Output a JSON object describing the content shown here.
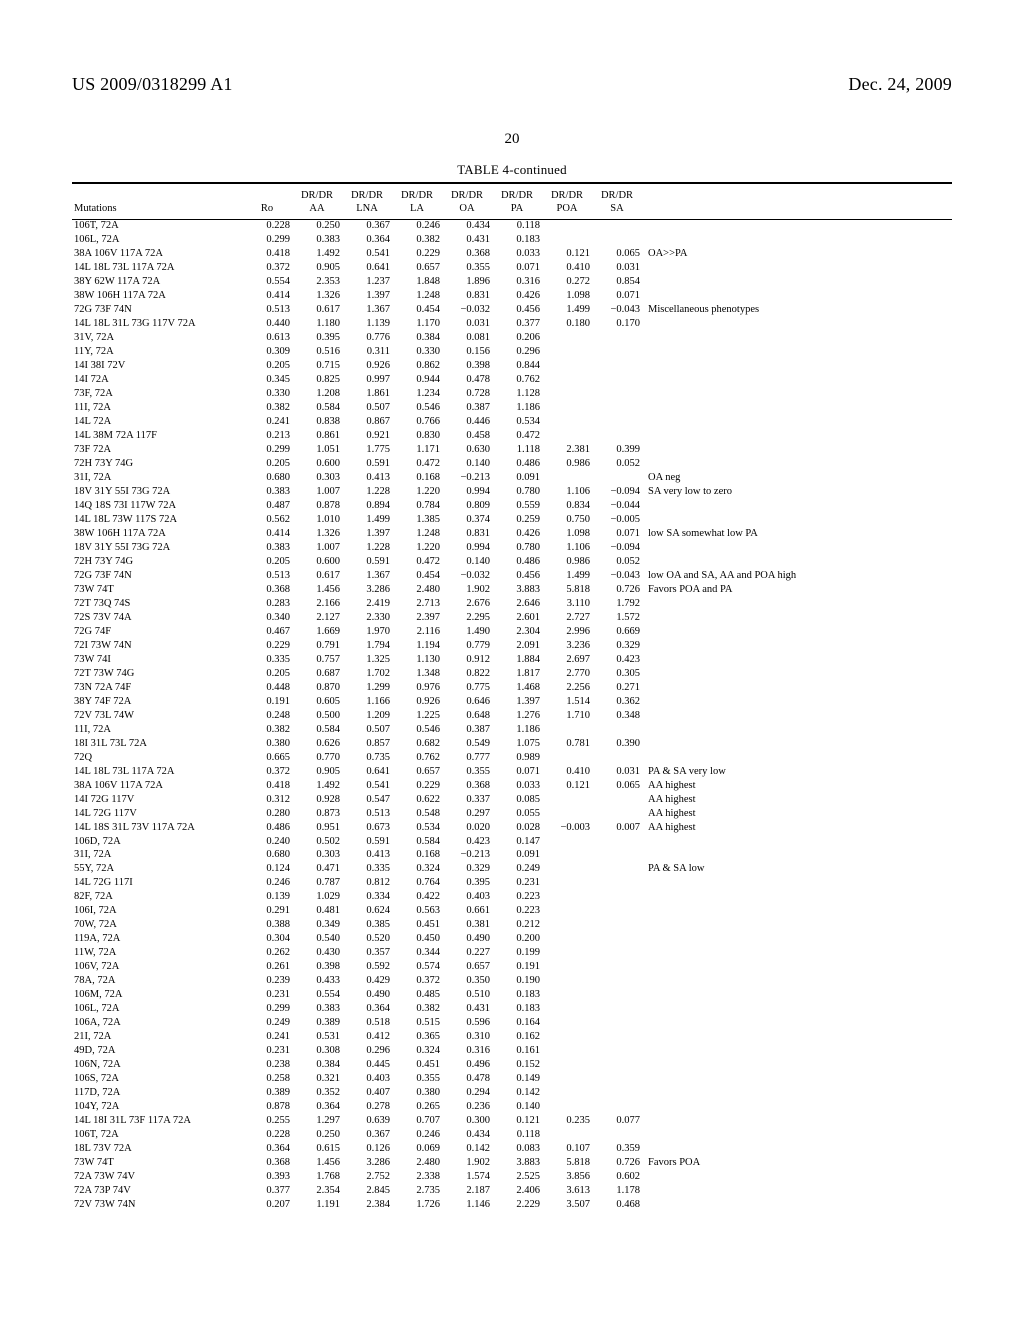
{
  "header": {
    "doc_number": "US 2009/0318299 A1",
    "date": "Dec. 24, 2009",
    "page_number": "20"
  },
  "table": {
    "caption": "TABLE 4-continued",
    "columns": [
      "Mutations",
      "Ro",
      "DR/DR AA",
      "DR/DR LNA",
      "DR/DR LA",
      "DR/DR OA",
      "DR/DR PA",
      "DR/DR POA",
      "DR/DR SA",
      ""
    ],
    "rows": [
      {
        "m": "106T, 72A",
        "v": [
          "0.228",
          "0.250",
          "0.367",
          "0.246",
          "0.434",
          "0.118",
          "",
          "",
          ""
        ]
      },
      {
        "m": "106L, 72A",
        "v": [
          "0.299",
          "0.383",
          "0.364",
          "0.382",
          "0.431",
          "0.183",
          "",
          "",
          ""
        ]
      },
      {
        "m": "38A 106V 117A 72A",
        "v": [
          "0.418",
          "1.492",
          "0.541",
          "0.229",
          "0.368",
          "0.033",
          "0.121",
          "0.065",
          "OA>>PA"
        ]
      },
      {
        "m": "14L 18L 73L 117A 72A",
        "v": [
          "0.372",
          "0.905",
          "0.641",
          "0.657",
          "0.355",
          "0.071",
          "0.410",
          "0.031",
          ""
        ]
      },
      {
        "m": "38Y 62W 117A 72A",
        "v": [
          "0.554",
          "2.353",
          "1.237",
          "1.848",
          "1.896",
          "0.316",
          "0.272",
          "0.854",
          ""
        ]
      },
      {
        "m": "38W 106H 117A 72A",
        "v": [
          "0.414",
          "1.326",
          "1.397",
          "1.248",
          "0.831",
          "0.426",
          "1.098",
          "0.071",
          ""
        ]
      },
      {
        "m": "72G 73F 74N",
        "v": [
          "0.513",
          "0.617",
          "1.367",
          "0.454",
          "−0.032",
          "0.456",
          "1.499",
          "−0.043",
          "Miscellaneous phenotypes"
        ]
      },
      {
        "m": "14L 18L 31L 73G 117V 72A",
        "v": [
          "0.440",
          "1.180",
          "1.139",
          "1.170",
          "0.031",
          "0.377",
          "0.180",
          "0.170",
          ""
        ]
      },
      {
        "m": "31V, 72A",
        "v": [
          "0.613",
          "0.395",
          "0.776",
          "0.384",
          "0.081",
          "0.206",
          "",
          "",
          ""
        ]
      },
      {
        "m": "11Y, 72A",
        "v": [
          "0.309",
          "0.516",
          "0.311",
          "0.330",
          "0.156",
          "0.296",
          "",
          "",
          ""
        ]
      },
      {
        "m": "14I 38I 72V",
        "v": [
          "0.205",
          "0.715",
          "0.926",
          "0.862",
          "0.398",
          "0.844",
          "",
          "",
          ""
        ]
      },
      {
        "m": "14I 72A",
        "v": [
          "0.345",
          "0.825",
          "0.997",
          "0.944",
          "0.478",
          "0.762",
          "",
          "",
          ""
        ]
      },
      {
        "m": "73F, 72A",
        "v": [
          "0.330",
          "1.208",
          "1.861",
          "1.234",
          "0.728",
          "1.128",
          "",
          "",
          ""
        ]
      },
      {
        "m": "11I, 72A",
        "v": [
          "0.382",
          "0.584",
          "0.507",
          "0.546",
          "0.387",
          "1.186",
          "",
          "",
          ""
        ]
      },
      {
        "m": "14L 72A",
        "v": [
          "0.241",
          "0.838",
          "0.867",
          "0.766",
          "0.446",
          "0.534",
          "",
          "",
          ""
        ]
      },
      {
        "m": "14L 38M 72A 117F",
        "v": [
          "0.213",
          "0.861",
          "0.921",
          "0.830",
          "0.458",
          "0.472",
          "",
          "",
          ""
        ]
      },
      {
        "m": "73F 72A",
        "v": [
          "0.299",
          "1.051",
          "1.775",
          "1.171",
          "0.630",
          "1.118",
          "2.381",
          "0.399",
          ""
        ]
      },
      {
        "m": "72H 73Y 74G",
        "v": [
          "0.205",
          "0.600",
          "0.591",
          "0.472",
          "0.140",
          "0.486",
          "0.986",
          "0.052",
          ""
        ]
      },
      {
        "m": "31I, 72A",
        "v": [
          "0.680",
          "0.303",
          "0.413",
          "0.168",
          "−0.213",
          "0.091",
          "",
          "",
          "OA neg"
        ]
      },
      {
        "m": "18V 31Y 55I 73G 72A",
        "v": [
          "0.383",
          "1.007",
          "1.228",
          "1.220",
          "0.994",
          "0.780",
          "1.106",
          "−0.094",
          "SA very low to zero"
        ]
      },
      {
        "m": "14Q 18S 73I 117W 72A",
        "v": [
          "0.487",
          "0.878",
          "0.894",
          "0.784",
          "0.809",
          "0.559",
          "0.834",
          "−0.044",
          ""
        ]
      },
      {
        "m": "14L 18L 73W 117S 72A",
        "v": [
          "0.562",
          "1.010",
          "1.499",
          "1.385",
          "0.374",
          "0.259",
          "0.750",
          "−0.005",
          ""
        ]
      },
      {
        "m": "38W 106H 117A 72A",
        "v": [
          "0.414",
          "1.326",
          "1.397",
          "1.248",
          "0.831",
          "0.426",
          "1.098",
          "0.071",
          "low SA somewhat low PA"
        ]
      },
      {
        "m": "18V 31Y 55I 73G 72A",
        "v": [
          "0.383",
          "1.007",
          "1.228",
          "1.220",
          "0.994",
          "0.780",
          "1.106",
          "−0.094",
          ""
        ]
      },
      {
        "m": "72H 73Y 74G",
        "v": [
          "0.205",
          "0.600",
          "0.591",
          "0.472",
          "0.140",
          "0.486",
          "0.986",
          "0.052",
          ""
        ]
      },
      {
        "m": "72G 73F 74N",
        "v": [
          "0.513",
          "0.617",
          "1.367",
          "0.454",
          "−0.032",
          "0.456",
          "1.499",
          "−0.043",
          "low OA and SA, AA and POA high"
        ]
      },
      {
        "m": "73W 74T",
        "v": [
          "0.368",
          "1.456",
          "3.286",
          "2.480",
          "1.902",
          "3.883",
          "5.818",
          "0.726",
          "Favors POA and PA"
        ]
      },
      {
        "m": "72T 73Q 74S",
        "v": [
          "0.283",
          "2.166",
          "2.419",
          "2.713",
          "2.676",
          "2.646",
          "3.110",
          "1.792",
          ""
        ]
      },
      {
        "m": "72S 73V 74A",
        "v": [
          "0.340",
          "2.127",
          "2.330",
          "2.397",
          "2.295",
          "2.601",
          "2.727",
          "1.572",
          ""
        ]
      },
      {
        "m": "72G 74F",
        "v": [
          "0.467",
          "1.669",
          "1.970",
          "2.116",
          "1.490",
          "2.304",
          "2.996",
          "0.669",
          ""
        ]
      },
      {
        "m": "72I 73W 74N",
        "v": [
          "0.229",
          "0.791",
          "1.794",
          "1.194",
          "0.779",
          "2.091",
          "3.236",
          "0.329",
          ""
        ]
      },
      {
        "m": "73W 74I",
        "v": [
          "0.335",
          "0.757",
          "1.325",
          "1.130",
          "0.912",
          "1.884",
          "2.697",
          "0.423",
          ""
        ]
      },
      {
        "m": "72T 73W 74G",
        "v": [
          "0.205",
          "0.687",
          "1.702",
          "1.348",
          "0.822",
          "1.817",
          "2.770",
          "0.305",
          ""
        ]
      },
      {
        "m": "73N 72A 74F",
        "v": [
          "0.448",
          "0.870",
          "1.299",
          "0.976",
          "0.775",
          "1.468",
          "2.256",
          "0.271",
          ""
        ]
      },
      {
        "m": "38Y 74F 72A",
        "v": [
          "0.191",
          "0.605",
          "1.166",
          "0.926",
          "0.646",
          "1.397",
          "1.514",
          "0.362",
          ""
        ]
      },
      {
        "m": "72V 73L 74W",
        "v": [
          "0.248",
          "0.500",
          "1.209",
          "1.225",
          "0.648",
          "1.276",
          "1.710",
          "0.348",
          ""
        ]
      },
      {
        "m": "11I, 72A",
        "v": [
          "0.382",
          "0.584",
          "0.507",
          "0.546",
          "0.387",
          "1.186",
          "",
          "",
          ""
        ]
      },
      {
        "m": "18I 31L 73L 72A",
        "v": [
          "0.380",
          "0.626",
          "0.857",
          "0.682",
          "0.549",
          "1.075",
          "0.781",
          "0.390",
          ""
        ]
      },
      {
        "m": "72Q",
        "v": [
          "0.665",
          "0.770",
          "0.735",
          "0.762",
          "0.777",
          "0.989",
          "",
          "",
          ""
        ]
      },
      {
        "m": "14L 18L 73L 117A 72A",
        "v": [
          "0.372",
          "0.905",
          "0.641",
          "0.657",
          "0.355",
          "0.071",
          "0.410",
          "0.031",
          "PA & SA very low"
        ]
      },
      {
        "m": "38A 106V 117A 72A",
        "v": [
          "0.418",
          "1.492",
          "0.541",
          "0.229",
          "0.368",
          "0.033",
          "0.121",
          "0.065",
          "AA highest"
        ]
      },
      {
        "m": "14I 72G 117V",
        "v": [
          "0.312",
          "0.928",
          "0.547",
          "0.622",
          "0.337",
          "0.085",
          "",
          "",
          "AA highest"
        ]
      },
      {
        "m": "14L 72G 117V",
        "v": [
          "0.280",
          "0.873",
          "0.513",
          "0.548",
          "0.297",
          "0.055",
          "",
          "",
          "AA highest"
        ]
      },
      {
        "m": "14L 18S 31L 73V 117A 72A",
        "v": [
          "0.486",
          "0.951",
          "0.673",
          "0.534",
          "0.020",
          "0.028",
          "−0.003",
          "0.007",
          "AA highest"
        ]
      },
      {
        "m": "106D, 72A",
        "v": [
          "0.240",
          "0.502",
          "0.591",
          "0.584",
          "0.423",
          "0.147",
          "",
          "",
          ""
        ]
      },
      {
        "m": "31I, 72A",
        "v": [
          "0.680",
          "0.303",
          "0.413",
          "0.168",
          "−0.213",
          "0.091",
          "",
          "",
          ""
        ]
      },
      {
        "m": "55Y, 72A",
        "v": [
          "0.124",
          "0.471",
          "0.335",
          "0.324",
          "0.329",
          "0.249",
          "",
          "",
          "PA & SA low"
        ]
      },
      {
        "m": "14L 72G 117I",
        "v": [
          "0.246",
          "0.787",
          "0.812",
          "0.764",
          "0.395",
          "0.231",
          "",
          "",
          ""
        ]
      },
      {
        "m": "82F, 72A",
        "v": [
          "0.139",
          "1.029",
          "0.334",
          "0.422",
          "0.403",
          "0.223",
          "",
          "",
          ""
        ]
      },
      {
        "m": "106I, 72A",
        "v": [
          "0.291",
          "0.481",
          "0.624",
          "0.563",
          "0.661",
          "0.223",
          "",
          "",
          ""
        ]
      },
      {
        "m": "70W, 72A",
        "v": [
          "0.388",
          "0.349",
          "0.385",
          "0.451",
          "0.381",
          "0.212",
          "",
          "",
          ""
        ]
      },
      {
        "m": "119A, 72A",
        "v": [
          "0.304",
          "0.540",
          "0.520",
          "0.450",
          "0.490",
          "0.200",
          "",
          "",
          ""
        ]
      },
      {
        "m": "11W, 72A",
        "v": [
          "0.262",
          "0.430",
          "0.357",
          "0.344",
          "0.227",
          "0.199",
          "",
          "",
          ""
        ]
      },
      {
        "m": "106V, 72A",
        "v": [
          "0.261",
          "0.398",
          "0.592",
          "0.574",
          "0.657",
          "0.191",
          "",
          "",
          ""
        ]
      },
      {
        "m": "78A, 72A",
        "v": [
          "0.239",
          "0.433",
          "0.429",
          "0.372",
          "0.350",
          "0.190",
          "",
          "",
          ""
        ]
      },
      {
        "m": "106M, 72A",
        "v": [
          "0.231",
          "0.554",
          "0.490",
          "0.485",
          "0.510",
          "0.183",
          "",
          "",
          ""
        ]
      },
      {
        "m": "106L, 72A",
        "v": [
          "0.299",
          "0.383",
          "0.364",
          "0.382",
          "0.431",
          "0.183",
          "",
          "",
          ""
        ]
      },
      {
        "m": "106A, 72A",
        "v": [
          "0.249",
          "0.389",
          "0.518",
          "0.515",
          "0.596",
          "0.164",
          "",
          "",
          ""
        ]
      },
      {
        "m": "21I, 72A",
        "v": [
          "0.241",
          "0.531",
          "0.412",
          "0.365",
          "0.310",
          "0.162",
          "",
          "",
          ""
        ]
      },
      {
        "m": "49D, 72A",
        "v": [
          "0.231",
          "0.308",
          "0.296",
          "0.324",
          "0.316",
          "0.161",
          "",
          "",
          ""
        ]
      },
      {
        "m": "106N, 72A",
        "v": [
          "0.238",
          "0.384",
          "0.445",
          "0.451",
          "0.496",
          "0.152",
          "",
          "",
          ""
        ]
      },
      {
        "m": "106S, 72A",
        "v": [
          "0.258",
          "0.321",
          "0.403",
          "0.355",
          "0.478",
          "0.149",
          "",
          "",
          ""
        ]
      },
      {
        "m": "117D, 72A",
        "v": [
          "0.389",
          "0.352",
          "0.407",
          "0.380",
          "0.294",
          "0.142",
          "",
          "",
          ""
        ]
      },
      {
        "m": "104Y, 72A",
        "v": [
          "0.878",
          "0.364",
          "0.278",
          "0.265",
          "0.236",
          "0.140",
          "",
          "",
          ""
        ]
      },
      {
        "m": "14L 18I 31L 73F 117A 72A",
        "v": [
          "0.255",
          "1.297",
          "0.639",
          "0.707",
          "0.300",
          "0.121",
          "0.235",
          "0.077",
          ""
        ]
      },
      {
        "m": "106T, 72A",
        "v": [
          "0.228",
          "0.250",
          "0.367",
          "0.246",
          "0.434",
          "0.118",
          "",
          "",
          ""
        ]
      },
      {
        "m": "18L 73V 72A",
        "v": [
          "0.364",
          "0.615",
          "0.126",
          "0.069",
          "0.142",
          "0.083",
          "0.107",
          "0.359",
          ""
        ]
      },
      {
        "m": "73W 74T",
        "v": [
          "0.368",
          "1.456",
          "3.286",
          "2.480",
          "1.902",
          "3.883",
          "5.818",
          "0.726",
          "Favors POA"
        ]
      },
      {
        "m": "72A 73W 74V",
        "v": [
          "0.393",
          "1.768",
          "2.752",
          "2.338",
          "1.574",
          "2.525",
          "3.856",
          "0.602",
          ""
        ]
      },
      {
        "m": "72A 73P 74V",
        "v": [
          "0.377",
          "2.354",
          "2.845",
          "2.735",
          "2.187",
          "2.406",
          "3.613",
          "1.178",
          ""
        ]
      },
      {
        "m": "72V 73W 74N",
        "v": [
          "0.207",
          "1.191",
          "2.384",
          "1.726",
          "1.146",
          "2.229",
          "3.507",
          "0.468",
          ""
        ]
      }
    ]
  }
}
